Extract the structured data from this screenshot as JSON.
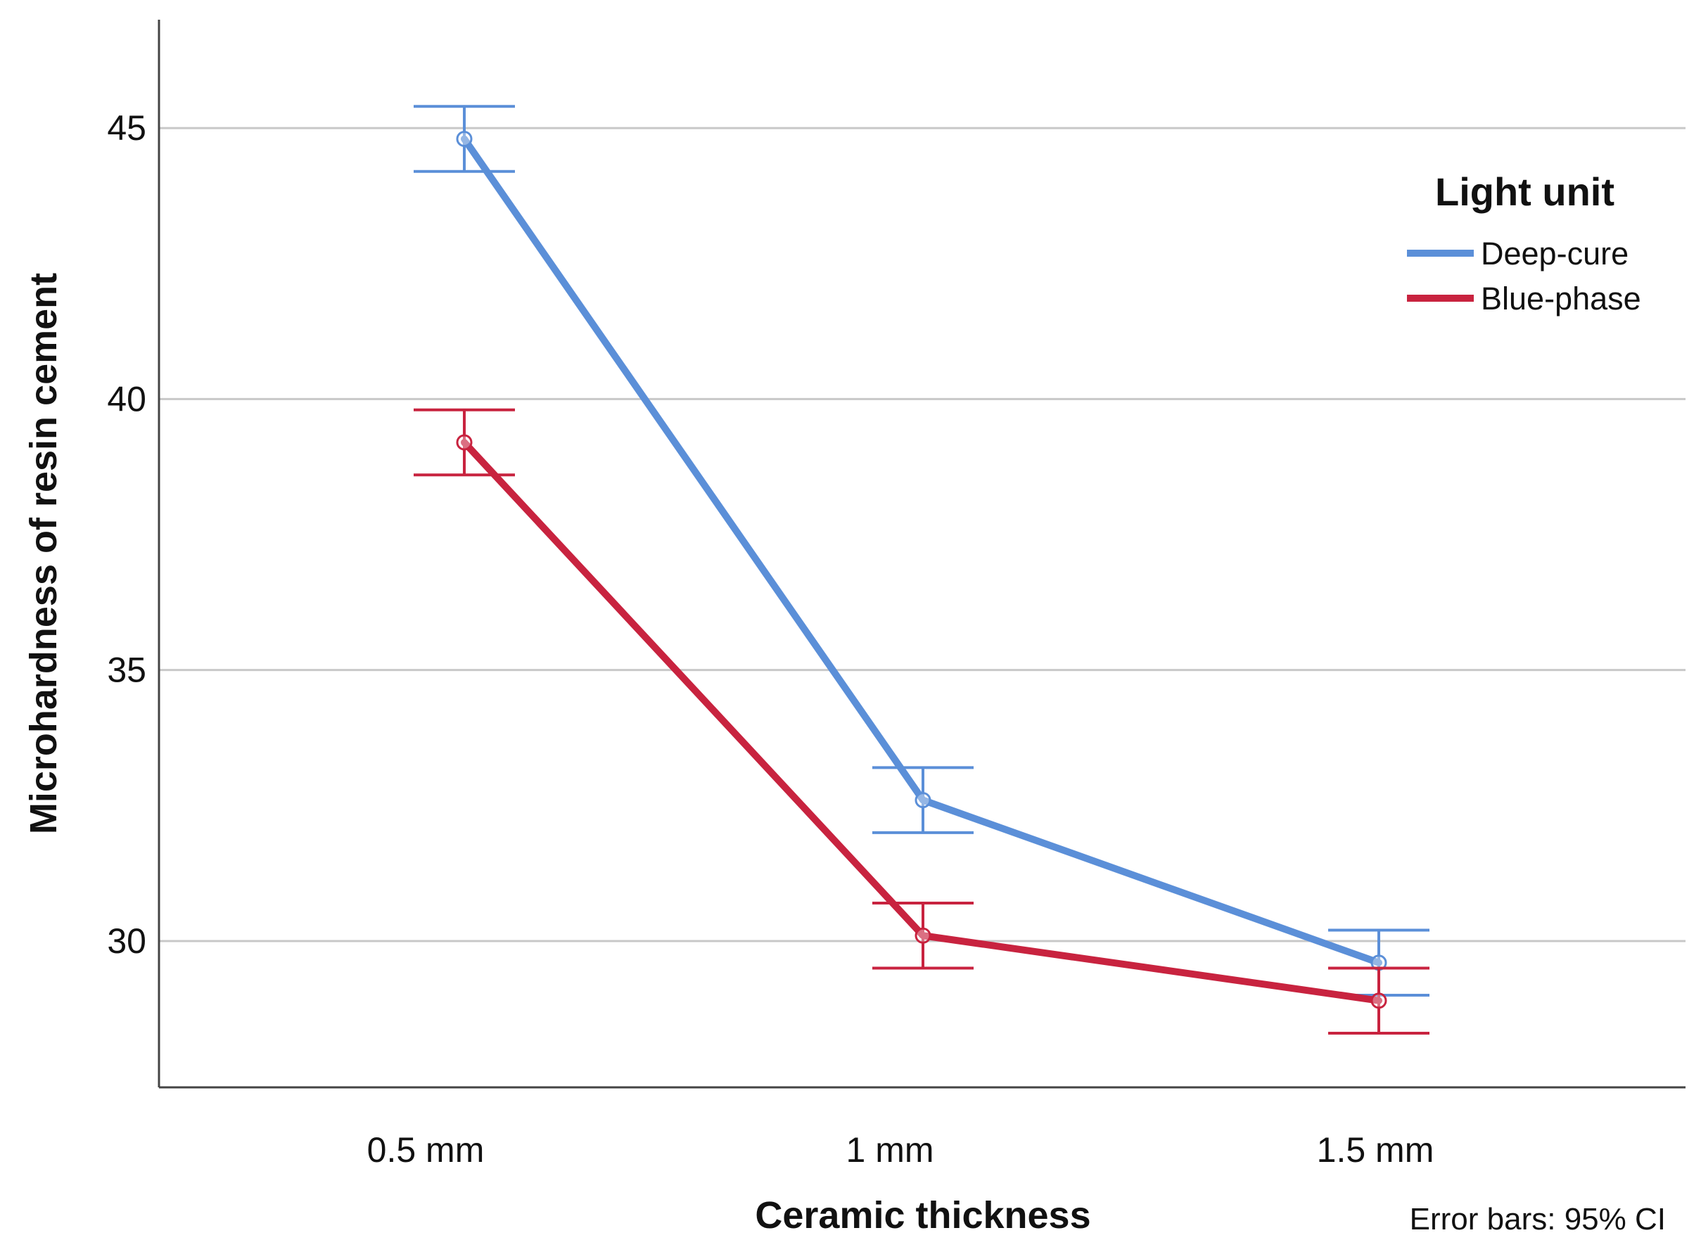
{
  "chart_data": {
    "type": "line",
    "title": "",
    "xlabel": "Ceramic thickness",
    "ylabel": "Microhardness of resin cement",
    "categories": [
      "0.5 mm",
      "1 mm",
      "1.5 mm"
    ],
    "yticks": [
      30,
      35,
      40,
      45
    ],
    "ylim": [
      27.3,
      47.0
    ],
    "grid": true,
    "legend": {
      "title": "Light unit",
      "position": "top-right"
    },
    "series": [
      {
        "name": "Deep-cure",
        "color": "#5b8fd8",
        "values": [
          44.8,
          32.6,
          29.6
        ],
        "ci_low": [
          44.2,
          32.0,
          29.0
        ],
        "ci_high": [
          45.4,
          33.2,
          30.2
        ]
      },
      {
        "name": "Blue-phase",
        "color": "#c8233f",
        "values": [
          39.2,
          30.1,
          28.9
        ],
        "ci_low": [
          38.6,
          29.5,
          28.3
        ],
        "ci_high": [
          39.8,
          30.7,
          29.5
        ]
      }
    ],
    "annotation": "Error bars: 95% CI"
  }
}
